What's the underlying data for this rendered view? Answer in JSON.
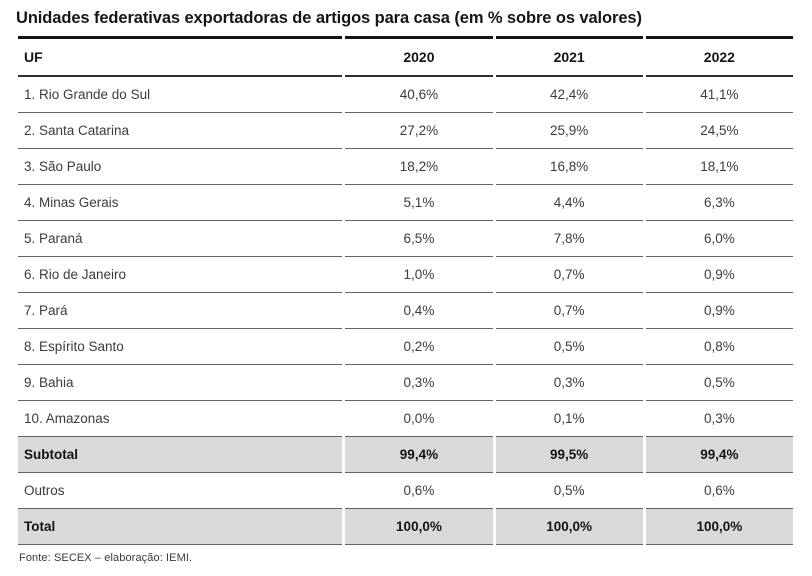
{
  "title": "Unidades federativas exportadoras de artigos para casa (em % sobre os valores)",
  "table": {
    "columns": [
      "UF",
      "2020",
      "2021",
      "2022"
    ],
    "rows": [
      {
        "uf": "1. Rio Grande do Sul",
        "values": [
          "40,6%",
          "42,4%",
          "41,1%"
        ],
        "emphasis": false
      },
      {
        "uf": "2. Santa Catarina",
        "values": [
          "27,2%",
          "25,9%",
          "24,5%"
        ],
        "emphasis": false
      },
      {
        "uf": "3. São Paulo",
        "values": [
          "18,2%",
          "16,8%",
          "18,1%"
        ],
        "emphasis": false
      },
      {
        "uf": "4. Minas Gerais",
        "values": [
          "5,1%",
          "4,4%",
          "6,3%"
        ],
        "emphasis": false
      },
      {
        "uf": "5. Paraná",
        "values": [
          "6,5%",
          "7,8%",
          "6,0%"
        ],
        "emphasis": false
      },
      {
        "uf": "6. Rio de Janeiro",
        "values": [
          "1,0%",
          "0,7%",
          "0,9%"
        ],
        "emphasis": false
      },
      {
        "uf": "7. Pará",
        "values": [
          "0,4%",
          "0,7%",
          "0,9%"
        ],
        "emphasis": false
      },
      {
        "uf": "8. Espírito Santo",
        "values": [
          "0,2%",
          "0,5%",
          "0,8%"
        ],
        "emphasis": false
      },
      {
        "uf": "9. Bahia",
        "values": [
          "0,3%",
          "0,3%",
          "0,5%"
        ],
        "emphasis": false
      },
      {
        "uf": "10. Amazonas",
        "values": [
          "0,0%",
          "0,1%",
          "0,3%"
        ],
        "emphasis": false
      },
      {
        "uf": "Subtotal",
        "values": [
          "99,4%",
          "99,5%",
          "99,4%"
        ],
        "emphasis": true
      },
      {
        "uf": "Outros",
        "values": [
          "0,6%",
          "0,5%",
          "0,6%"
        ],
        "emphasis": false
      },
      {
        "uf": "Total",
        "values": [
          "100,0%",
          "100,0%",
          "100,0%"
        ],
        "emphasis": true
      }
    ]
  },
  "footer": "Fonte: SECEX – elaboração: IEMI.",
  "colors": {
    "highlight_row_bg": "#d9d9d9",
    "border_dark": "#141414",
    "row_separator": "#646464",
    "text": "#3c3c3c"
  },
  "chart_data": {
    "type": "table",
    "title": "Unidades federativas exportadoras de artigos para casa (em % sobre os valores)",
    "columns": [
      "UF",
      "2020",
      "2021",
      "2022"
    ],
    "rows": [
      [
        "1. Rio Grande do Sul",
        40.6,
        42.4,
        41.1
      ],
      [
        "2. Santa Catarina",
        27.2,
        25.9,
        24.5
      ],
      [
        "3. São Paulo",
        18.2,
        16.8,
        18.1
      ],
      [
        "4. Minas Gerais",
        5.1,
        4.4,
        6.3
      ],
      [
        "5. Paraná",
        6.5,
        7.8,
        6.0
      ],
      [
        "6. Rio de Janeiro",
        1.0,
        0.7,
        0.9
      ],
      [
        "7. Pará",
        0.4,
        0.7,
        0.9
      ],
      [
        "8. Espírito Santo",
        0.2,
        0.5,
        0.8
      ],
      [
        "9. Bahia",
        0.3,
        0.3,
        0.5
      ],
      [
        "10. Amazonas",
        0.0,
        0.1,
        0.3
      ],
      [
        "Subtotal",
        99.4,
        99.5,
        99.4
      ],
      [
        "Outros",
        0.6,
        0.5,
        0.6
      ],
      [
        "Total",
        100.0,
        100.0,
        100.0
      ]
    ],
    "units": "percent of export values",
    "source": "Fonte: SECEX – elaboração: IEMI."
  }
}
